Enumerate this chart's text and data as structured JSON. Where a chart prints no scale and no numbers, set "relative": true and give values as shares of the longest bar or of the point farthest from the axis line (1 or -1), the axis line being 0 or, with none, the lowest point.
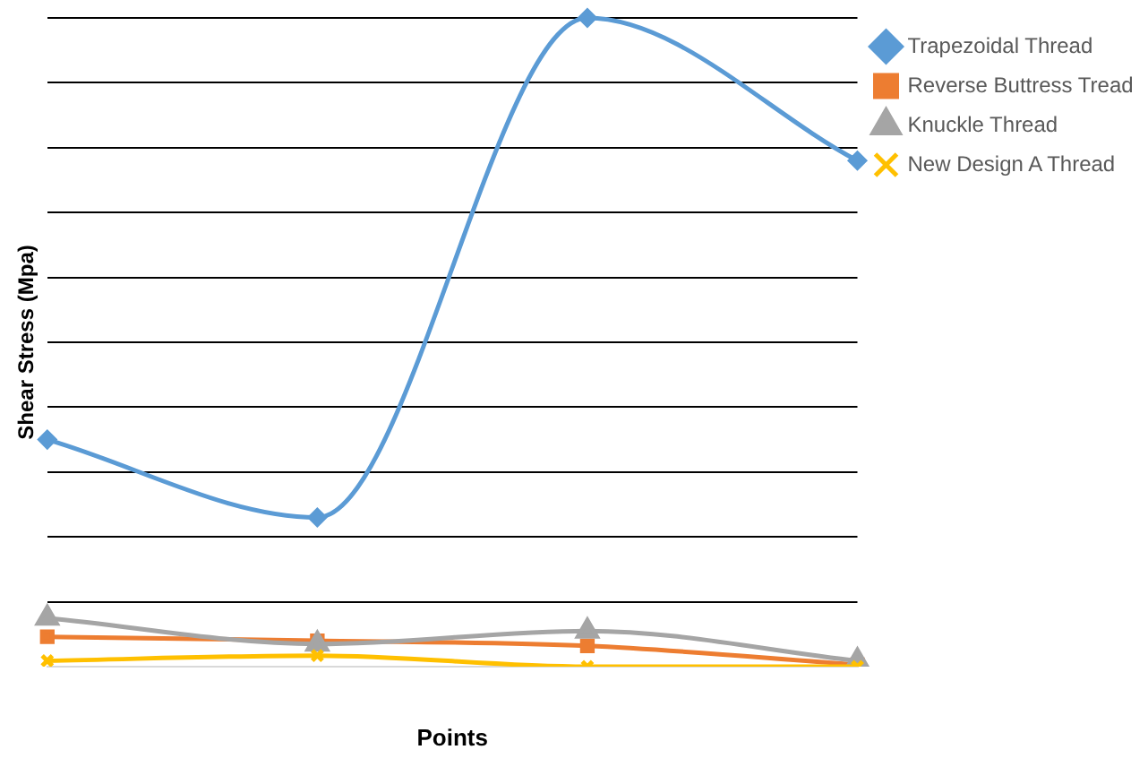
{
  "chart_data": {
    "type": "line",
    "ylabel": "Shear Stress (Mpa)",
    "xlabel": "Points",
    "relative": true,
    "grid": "y",
    "legend": "right",
    "categories": [
      null,
      null,
      null,
      null
    ],
    "series": [
      {
        "name": "Trapezoidal Thread",
        "color": "#5b9bd5",
        "marker": "diamond",
        "values": [
          0.35,
          0.23,
          1,
          0.78
        ]
      },
      {
        "name": "Reverse Buttress Tread",
        "color": "#ed7d31",
        "marker": "square",
        "values": [
          0.046,
          0.04,
          0.032,
          0.003
        ]
      },
      {
        "name": "Knuckle Thread",
        "color": "#a5a5a5",
        "marker": "triangle",
        "values": [
          0.075,
          0.035,
          0.055,
          0.009
        ]
      },
      {
        "name": "New Design A Thread",
        "color": "#ffc000",
        "marker": "cross",
        "values": [
          0.009,
          0.017,
          0,
          0
        ]
      }
    ]
  }
}
